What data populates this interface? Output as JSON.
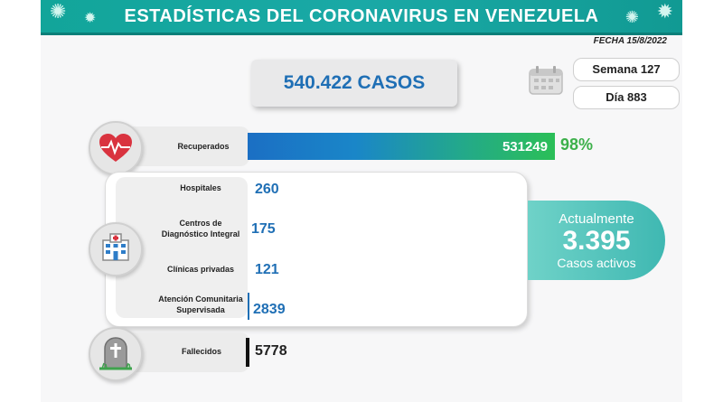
{
  "header": {
    "title": "ESTADÍSTICAS DEL CORONAVIRUS EN VENEZUELA",
    "date": "FECHA 15/8/2022",
    "accent_color": "#12a59a"
  },
  "summary": {
    "total_cases": "540.422 CASOS",
    "week": "Semana 127",
    "day": "Día 883"
  },
  "recovered": {
    "label": "Recuperados",
    "value": "531249",
    "percent": "98%",
    "icon": "heart-icon"
  },
  "care": {
    "icon": "hospital-icon",
    "rows": [
      {
        "label": "Hospitales",
        "value": "260"
      },
      {
        "label": "Centros de Diagnóstico Integral",
        "value": "175"
      },
      {
        "label": "Clínicas privadas",
        "value": "121"
      },
      {
        "label": "Atención Comunitaria Supervisada",
        "value": "2839"
      }
    ]
  },
  "active": {
    "top": "Actualmente",
    "value": "3.395",
    "bottom": "Casos activos"
  },
  "deaths": {
    "label": "Fallecidos",
    "value": "5778",
    "icon": "tombstone-icon"
  }
}
